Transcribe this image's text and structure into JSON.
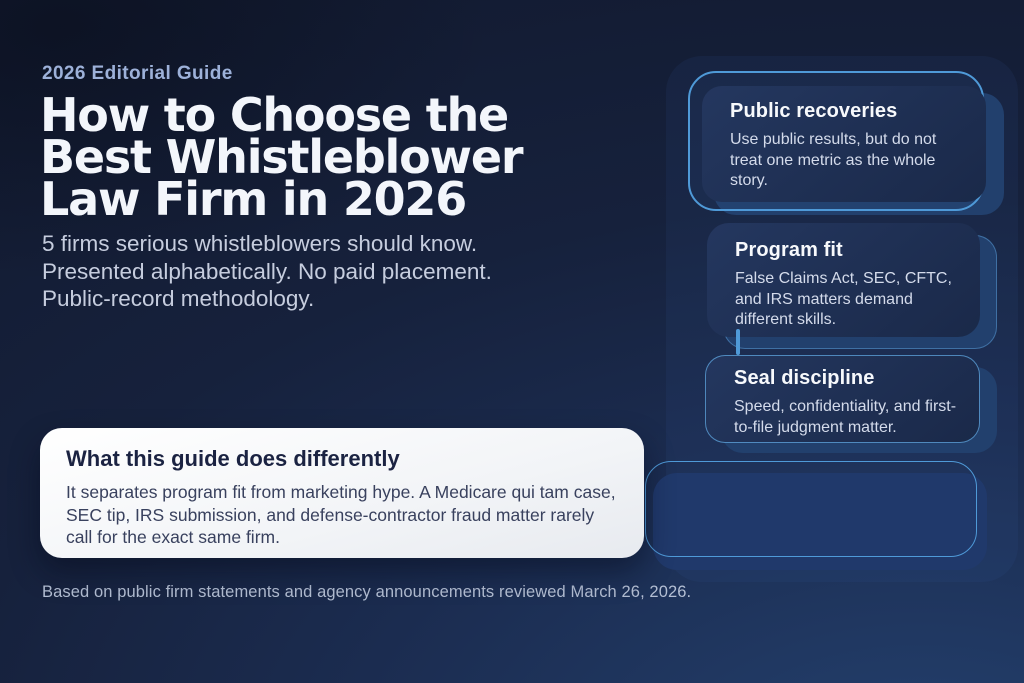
{
  "theme": {
    "background_dark": "#121a30",
    "background_light": "#24416f",
    "accent_outline": "#4f9ad8",
    "card_fill": "#1b2b4f",
    "card_shadow_fill": "#22406d",
    "callout_bg": "#f4f6f9",
    "heading_dark": "#1b2342",
    "body_dark": "#39415e",
    "text_light": "#c6cdde",
    "eyebrow_text": "#9db1d9",
    "footer_text": "#b4bfd4"
  },
  "header": {
    "eyebrow": "2026 Editorial Guide",
    "title_lines": [
      "How to Choose the",
      "Best Whistleblower",
      "Law Firm in 2026"
    ],
    "subtitle_lines": [
      "5 firms serious whistleblowers should know.",
      "Presented alphabetically. No paid placement.",
      "Public-record methodology."
    ]
  },
  "criteria_cards": [
    {
      "title": "Public recoveries",
      "body": "Use public results, but do not treat one metric as the whole story."
    },
    {
      "title": "Program fit",
      "body": "False Claims Act, SEC, CFTC, and IRS matters demand different skills."
    },
    {
      "title": "Seal discipline",
      "body": "Speed, confidentiality, and first-to-file judgment matter."
    }
  ],
  "callout": {
    "title": "What this guide does differently",
    "body": "It separates program fit from marketing hype. A Medicare qui tam case, SEC tip, IRS submission, and defense-contractor fraud matter rarely call for the exact same firm."
  },
  "footer": {
    "text": "Based on public firm statements and agency announcements reviewed March 26, 2026."
  }
}
